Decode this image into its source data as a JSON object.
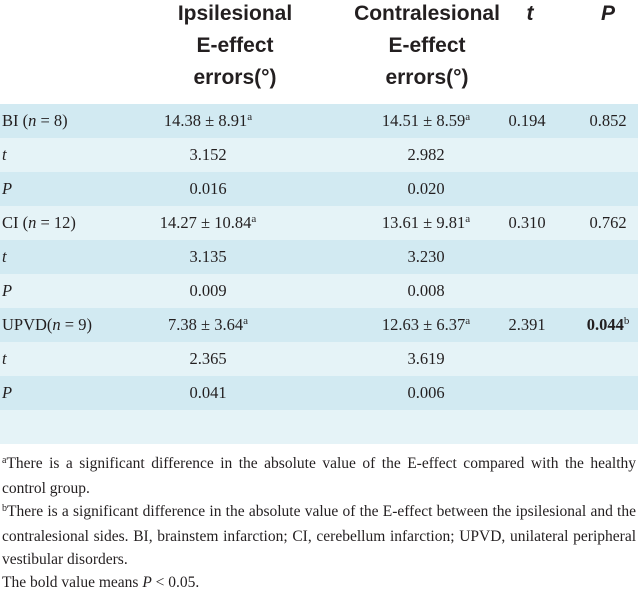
{
  "header": {
    "col1": [
      "Ipsilesional",
      "E-effect",
      "errors(°)"
    ],
    "col2": [
      "Contralesional",
      "E-effect",
      "errors(°)"
    ],
    "col3": "t",
    "col4": "P"
  },
  "rows": [
    {
      "c0a": "BI (",
      "c0i": "n",
      "c0b": " = 8)",
      "c1": "14.38 ± 8.91",
      "c1s": "a",
      "c2": "14.51 ± 8.59",
      "c2s": "a",
      "c3": "0.194",
      "c4": "0.852"
    },
    {
      "c0i": "t",
      "c1": "3.152",
      "c2": "2.982"
    },
    {
      "c0i": "P",
      "c1": "0.016",
      "c2": "0.020"
    },
    {
      "c0a": "CI (",
      "c0i": "n",
      "c0b": " = 12)",
      "c1": "14.27 ± 10.84",
      "c1s": "a",
      "c2": "13.61 ± 9.81",
      "c2s": "a",
      "c3": "0.310",
      "c4": "0.762"
    },
    {
      "c0i": "t",
      "c1": "3.135",
      "c2": "3.230"
    },
    {
      "c0i": "P",
      "c1": "0.009",
      "c2": "0.008"
    },
    {
      "c0a": "UPVD(",
      "c0i": "n",
      "c0b": " = 9)",
      "c1": "7.38 ± 3.64",
      "c1s": "a",
      "c2": "12.63 ± 6.37",
      "c2s": "a",
      "c3": "2.391",
      "c4": "0.044",
      "c4s": "b"
    },
    {
      "c0i": "t",
      "c1": "2.365",
      "c2": "3.619"
    },
    {
      "c0i": "P",
      "c1": "0.041",
      "c2": "0.006"
    }
  ],
  "footnotes": {
    "a_mark": "a",
    "a_text": "There is a significant difference in the absolute value of the E-effect compared with the healthy control group.",
    "b_mark": "b",
    "b_text": "There is a significant difference in the absolute value of the E-effect between the ipsilesional and the contralesional sides. BI, brainstem infarction; CI, cerebellum infarction; UPVD, unilateral peripheral vestibular disorders.",
    "bold_pre": "The bold value means ",
    "bold_var": "P",
    "bold_post": " < 0.05."
  },
  "colors": {
    "header_bg": "#ffffff",
    "body_bg": "#e5f3f7",
    "band_bg": "#d2eaf2",
    "text": "#231f20"
  }
}
